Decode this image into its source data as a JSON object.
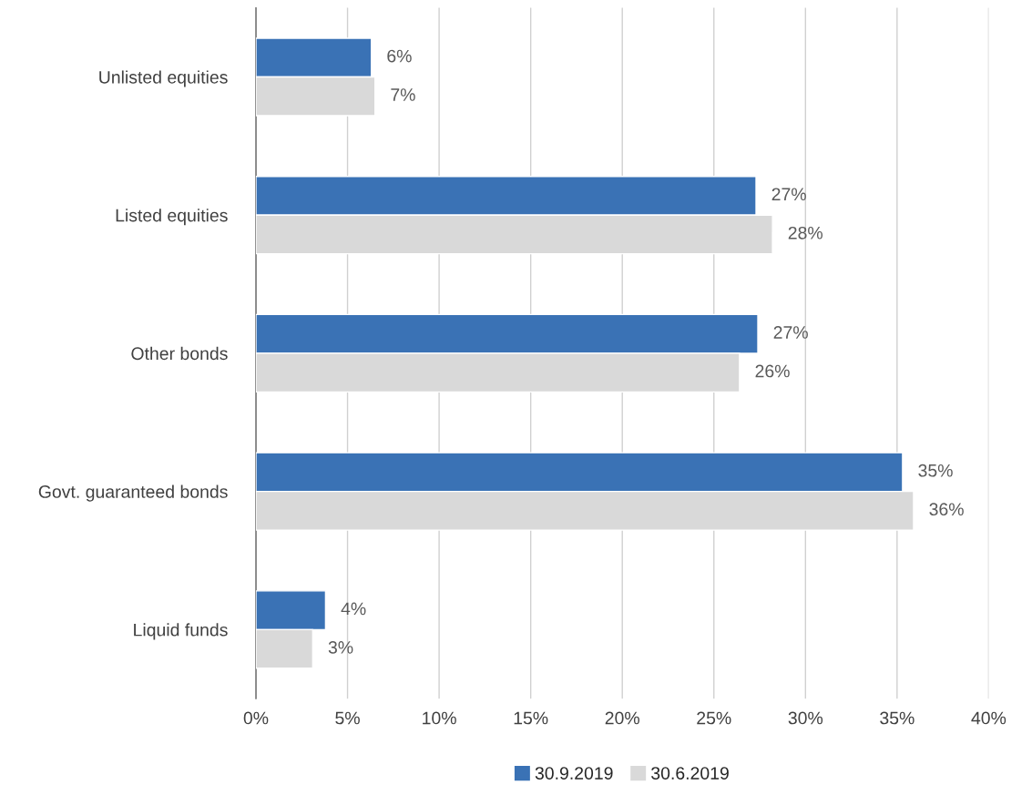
{
  "chart_data": {
    "type": "bar",
    "orientation": "horizontal",
    "categories": [
      "Unlisted equities",
      "Listed equities",
      "Other bonds",
      "Govt. guaranteed bonds",
      "Liquid funds"
    ],
    "series": [
      {
        "name": "30.9.2019",
        "color": "#3a72b5",
        "values": [
          6.3,
          27.3,
          27.4,
          35.3,
          3.8
        ],
        "value_labels": [
          "6%",
          "27%",
          "27%",
          "35%",
          "4%"
        ]
      },
      {
        "name": "30.6.2019",
        "color": "#d9d9d9",
        "values": [
          6.5,
          28.2,
          26.4,
          35.9,
          3.1
        ],
        "value_labels": [
          "7%",
          "28%",
          "26%",
          "36%",
          "3%"
        ]
      }
    ],
    "xlim": [
      0,
      40
    ],
    "xticks": [
      {
        "value": 0,
        "label": "0%"
      },
      {
        "value": 5,
        "label": "5%"
      },
      {
        "value": 10,
        "label": "10%"
      },
      {
        "value": 15,
        "label": "15%"
      },
      {
        "value": 20,
        "label": "20%"
      },
      {
        "value": 25,
        "label": "25%"
      },
      {
        "value": 30,
        "label": "30%"
      },
      {
        "value": 35,
        "label": "35%"
      },
      {
        "value": 40,
        "label": "40%"
      }
    ],
    "grid": "x",
    "legend": "bottom"
  }
}
